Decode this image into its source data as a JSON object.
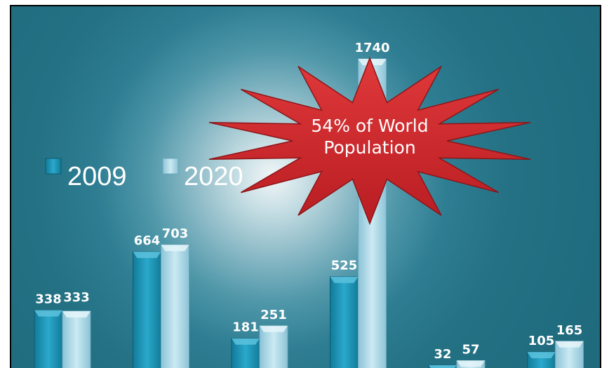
{
  "chart_data": {
    "type": "bar",
    "categories": [
      "",
      "",
      "",
      "",
      "",
      ""
    ],
    "series": [
      {
        "name": "2009",
        "values": [
          338,
          664,
          181,
          525,
          32,
          105
        ],
        "color": "#1e8fb0"
      },
      {
        "name": "2020",
        "values": [
          333,
          703,
          251,
          1740,
          57,
          165
        ],
        "color": "#a9d6e6"
      }
    ],
    "legend_position": "left-middle",
    "grid": false,
    "annotation": [
      "54% of World",
      "Population"
    ]
  }
}
